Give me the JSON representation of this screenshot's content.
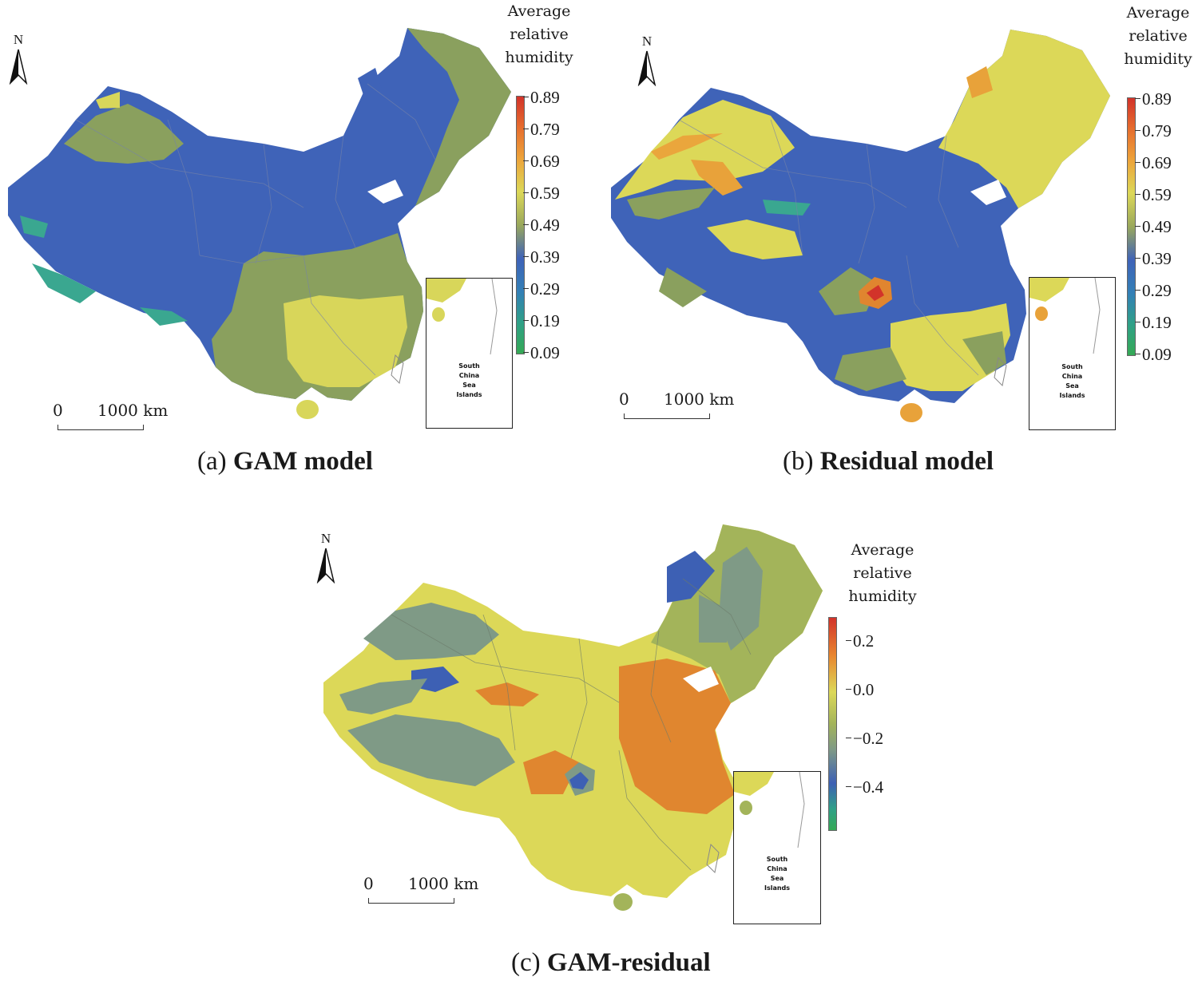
{
  "figure": {
    "panels": [
      {
        "id": "a",
        "caption_prefix": "(a)",
        "caption_title": "GAM model",
        "north_label": "N",
        "scale": {
          "zero": "0",
          "distance": "1000 km"
        },
        "legend": {
          "title_lines": [
            "Average",
            "relative",
            "humidity"
          ],
          "ticks": [
            "0.89",
            "0.79",
            "0.69",
            "0.59",
            "0.49",
            "0.39",
            "0.29",
            "0.19",
            "0.09"
          ]
        },
        "inset_label_lines": [
          "South",
          "China",
          "Sea",
          "Islands"
        ],
        "colors": {
          "base": "#3f63b8",
          "accent1": "#8aa05e",
          "accent2": "#d8d65a",
          "accent3": "#3aa790",
          "accent4": "#e29a3a"
        }
      },
      {
        "id": "b",
        "caption_prefix": "(b)",
        "caption_title": "Residual model",
        "north_label": "N",
        "scale": {
          "zero": "0",
          "distance": "1000 km"
        },
        "legend": {
          "title_lines": [
            "Average",
            "relative",
            "humidity"
          ],
          "ticks": [
            "0.89",
            "0.79",
            "0.69",
            "0.59",
            "0.49",
            "0.39",
            "0.29",
            "0.19",
            "0.09"
          ]
        },
        "inset_label_lines": [
          "South",
          "China",
          "Sea",
          "Islands"
        ],
        "colors": {
          "base": "#3f63b8",
          "accent1": "#8aa05e",
          "accent2": "#dcd858",
          "accent3": "#3aa790",
          "accent4": "#e0852f"
        }
      },
      {
        "id": "c",
        "caption_prefix": "(c)",
        "caption_title": "GAM-residual",
        "north_label": "N",
        "scale": {
          "zero": "0",
          "distance": "1000 km"
        },
        "legend": {
          "title_lines": [
            "Average",
            "relative",
            "humidity"
          ],
          "ticks": [
            "0.2",
            "0.0",
            "−0.2",
            "−0.4"
          ]
        },
        "inset_label_lines": [
          "South",
          "China",
          "Sea",
          "Islands"
        ],
        "colors": {
          "base": "#dcd858",
          "accent1": "#7f9a86",
          "accent2": "#e0862f",
          "accent3": "#3d60b4",
          "accent4": "#a3b45a"
        }
      }
    ]
  }
}
